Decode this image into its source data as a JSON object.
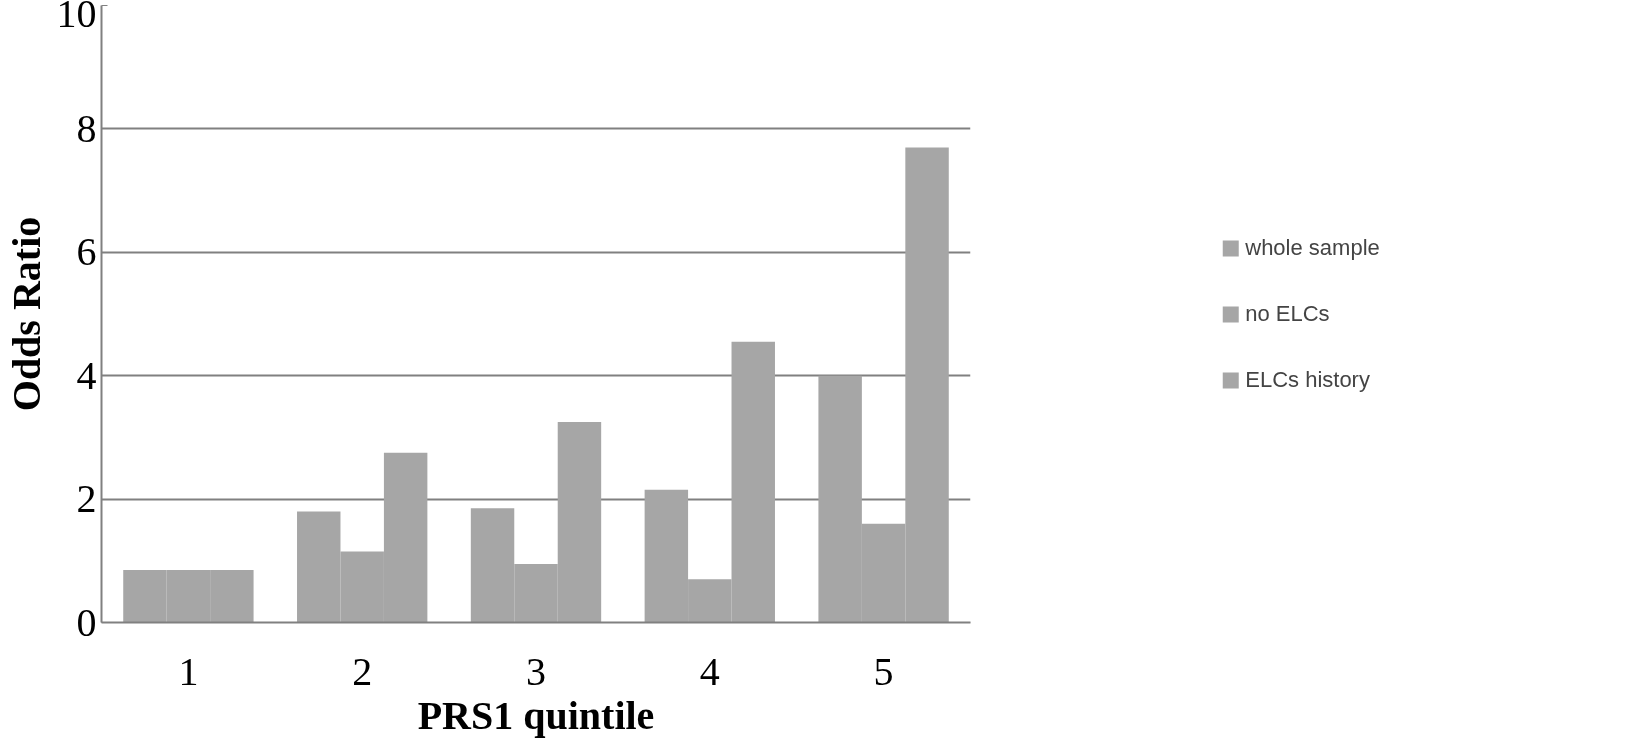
{
  "chart_data": {
    "type": "bar",
    "xlabel": "PRS1 quintile",
    "ylabel": "Odds Ratio",
    "categories": [
      "1",
      "2",
      "3",
      "4",
      "5"
    ],
    "series": [
      {
        "name": "whole sample",
        "color": "#a6a6a6",
        "values": [
          0.85,
          1.8,
          1.85,
          2.15,
          4.0
        ]
      },
      {
        "name": "no ELCs",
        "color": "#a6a6a6",
        "values": [
          0.85,
          1.15,
          0.95,
          0.7,
          1.6
        ]
      },
      {
        "name": "ELCs history",
        "color": "#a6a6a6",
        "values": [
          0.85,
          2.75,
          3.25,
          4.55,
          7.7
        ]
      }
    ],
    "ylim": [
      0,
      10
    ],
    "yticks": [
      0,
      2,
      4,
      6,
      8,
      10
    ],
    "grid": "y",
    "legend": "right"
  }
}
